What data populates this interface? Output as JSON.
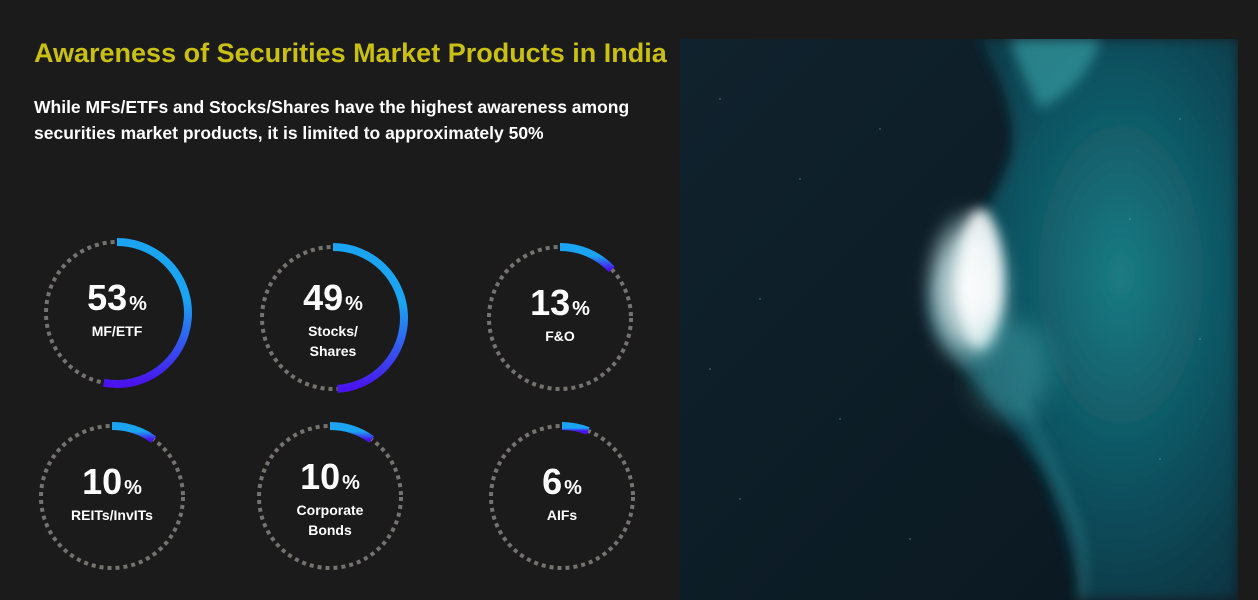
{
  "header": {
    "title": "Awareness of Securities Market Products in India",
    "subtitle": "While MFs/ETFs and Stocks/Shares have the highest awareness among securities market products, it is limited to approximately 50%"
  },
  "colors": {
    "title": "#c9c012",
    "text": "#ffffff",
    "track": "#75736e",
    "arc_start": "#1aa4f2",
    "arc_end": "#4a12ee",
    "background": "#1b1b1c"
  },
  "image": {
    "description_icon": "ocean-wave-aerial-photo"
  },
  "chart_data": {
    "type": "donut-gauges",
    "unit": "%",
    "max": 100,
    "items": [
      {
        "value": 53,
        "label_lines": [
          "MF/ETF"
        ]
      },
      {
        "value": 49,
        "label_lines": [
          "Stocks/",
          "Shares"
        ]
      },
      {
        "value": 13,
        "label_lines": [
          "F&O"
        ]
      },
      {
        "value": 10,
        "label_lines": [
          "REITs/InvITs"
        ]
      },
      {
        "value": 10,
        "label_lines": [
          "Corporate",
          "Bonds"
        ]
      },
      {
        "value": 6,
        "label_lines": [
          "AIFs"
        ]
      }
    ]
  }
}
